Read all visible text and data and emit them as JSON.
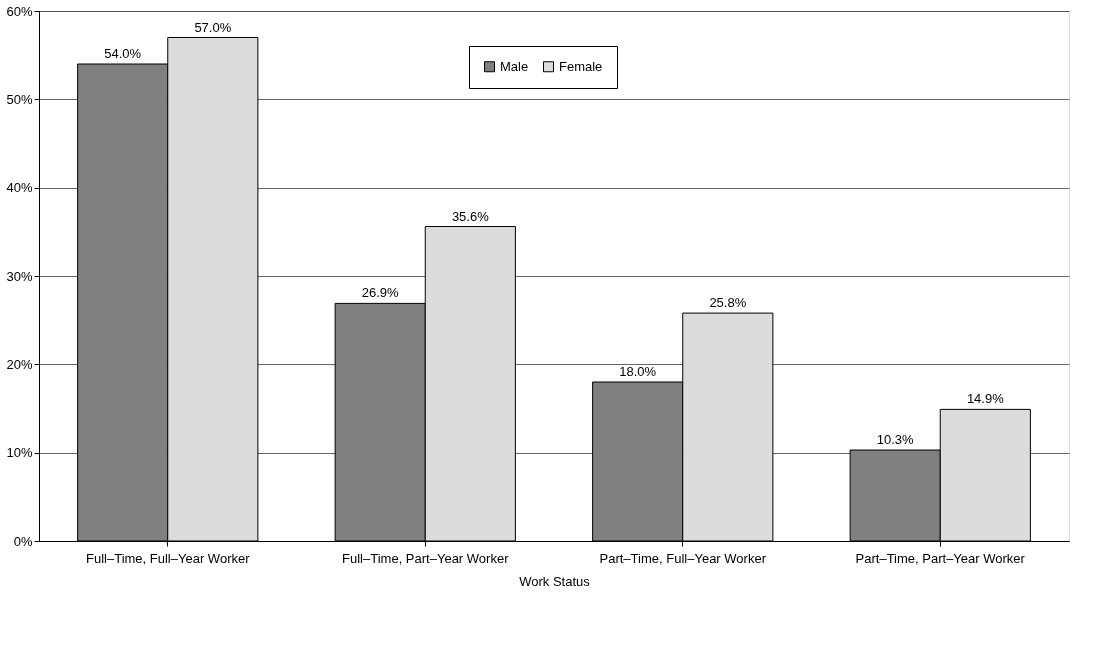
{
  "chart_data": {
    "type": "bar",
    "xlabel": "Work Status",
    "categories": [
      "Full–Time, Full–Year Worker",
      "Full–Time, Part–Year Worker",
      "Part–Time, Full–Year Worker",
      "Part–Time, Part–Year Worker"
    ],
    "series": [
      {
        "name": "Male",
        "color": "#808080",
        "values": [
          54.0,
          26.9,
          18.0,
          10.3
        ],
        "value_labels": [
          "54.0%",
          "26.9%",
          "18.0%",
          "10.3%"
        ]
      },
      {
        "name": "Female",
        "color": "#dcdcdc",
        "values": [
          57.0,
          35.6,
          25.8,
          14.9
        ],
        "value_labels": [
          "57.0%",
          "35.6%",
          "25.8%",
          "14.9%"
        ]
      }
    ],
    "ylim": [
      0,
      60
    ],
    "yticks": [
      {
        "value": 0,
        "label": "0%"
      },
      {
        "value": 10,
        "label": "10%"
      },
      {
        "value": 20,
        "label": "20%"
      },
      {
        "value": 30,
        "label": "30%"
      },
      {
        "value": 40,
        "label": "40%"
      },
      {
        "value": 50,
        "label": "50%"
      },
      {
        "value": 60,
        "label": "60%"
      }
    ],
    "grid": "y",
    "legend": "top"
  }
}
